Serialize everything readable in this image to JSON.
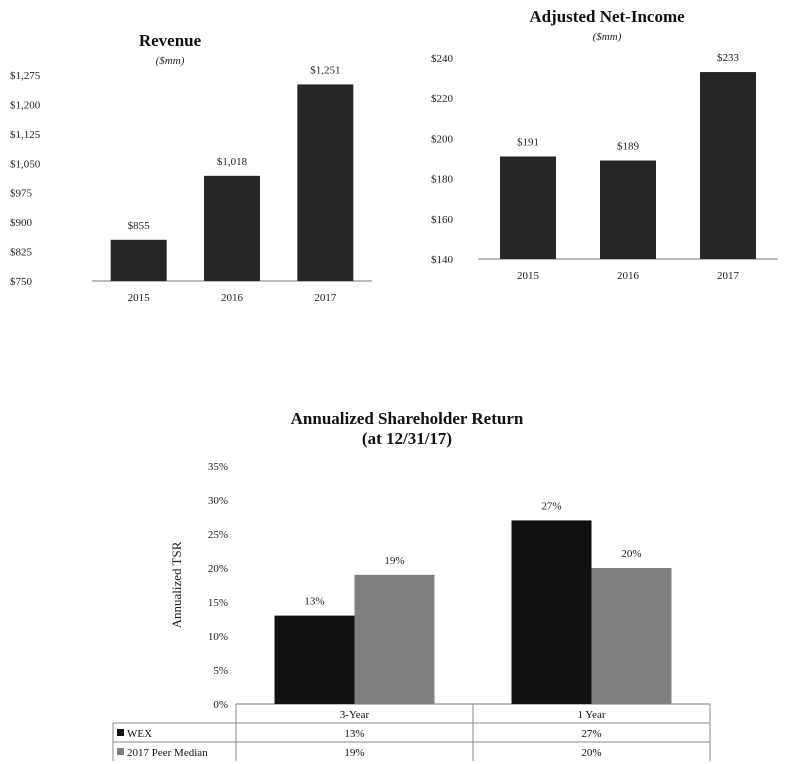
{
  "chart_data": [
    {
      "type": "bar",
      "title": "Revenue",
      "subtitle": "($mm)",
      "categories": [
        "2015",
        "2016",
        "2017"
      ],
      "values": [
        855,
        1018,
        1251
      ],
      "data_labels": [
        "$855",
        "$1,018",
        "$1,251"
      ],
      "ylim": [
        750,
        1275
      ],
      "yticks": [
        "$750",
        "$825",
        "$900",
        "$975",
        "$1,050",
        "$1,125",
        "$1,200",
        "$1,275"
      ],
      "bar_color": "#262626",
      "grid": false
    },
    {
      "type": "bar",
      "title": "Adjusted Net-Income",
      "subtitle": "($mm)",
      "categories": [
        "2015",
        "2016",
        "2017"
      ],
      "values": [
        191,
        189,
        233
      ],
      "data_labels": [
        "$191",
        "$189",
        "$233"
      ],
      "ylim": [
        140,
        240
      ],
      "yticks": [
        "$140",
        "$160",
        "$180",
        "$200",
        "$220",
        "$240"
      ],
      "bar_color": "#262626",
      "grid": false
    },
    {
      "type": "bar",
      "title": "Annualized Shareholder Return",
      "subtitle": "(at 12/31/17)",
      "ylabel": "Annualized TSR",
      "categories": [
        "3-Year",
        "1 Year"
      ],
      "series": [
        {
          "name": "WEX",
          "values": [
            13,
            27
          ],
          "labels": [
            "13%",
            "27%"
          ],
          "color": "#111111"
        },
        {
          "name": "2017 Peer Median",
          "values": [
            19,
            20
          ],
          "labels": [
            "19%",
            "20%"
          ],
          "color": "#7f7f7f"
        }
      ],
      "ylim": [
        0,
        35
      ],
      "yticks": [
        "0%",
        "5%",
        "10%",
        "15%",
        "20%",
        "25%",
        "30%",
        "35%"
      ],
      "legend": "data-table",
      "grid": false
    }
  ]
}
